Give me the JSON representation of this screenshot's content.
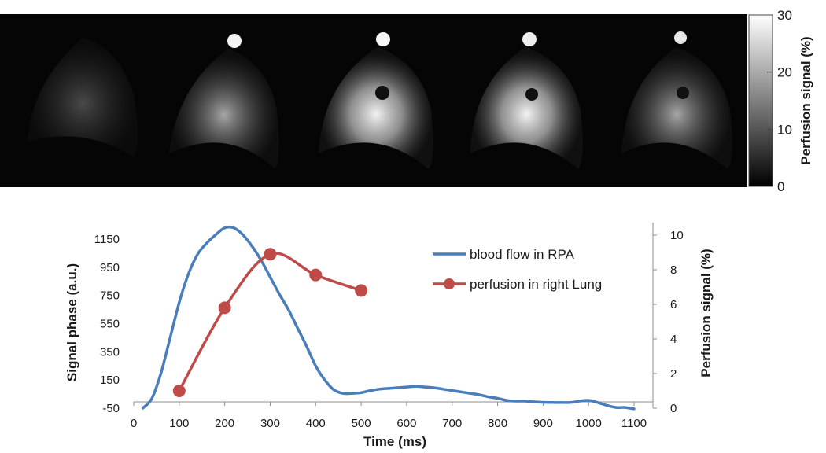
{
  "image_strip": {
    "panel_count": 5,
    "colorbar": {
      "label": "Perfusion signal (%)",
      "ticks": [
        "0",
        "10",
        "20",
        "30"
      ],
      "range": [
        0,
        30
      ],
      "gradient": [
        "#000000",
        "#ffffff"
      ]
    }
  },
  "chart_data": {
    "type": "line",
    "title": "",
    "xlabel": "Time (ms)",
    "ylabel": "Signal phase (a.u.)",
    "y2label": "Perfusion signal (%)",
    "xlim": [
      0,
      1150
    ],
    "ylim": [
      -50,
      1300
    ],
    "y2lim": [
      0,
      11
    ],
    "x_ticks": [
      "0",
      "100",
      "200",
      "300",
      "400",
      "500",
      "600",
      "700",
      "800",
      "900",
      "1000",
      "1100"
    ],
    "y_ticks": [
      "-50",
      "150",
      "350",
      "550",
      "750",
      "950",
      "1150"
    ],
    "y2_ticks": [
      "0",
      "2",
      "4",
      "6",
      "8",
      "10"
    ],
    "legend_position": "top-right",
    "series": [
      {
        "name": "blood flow in RPA",
        "axis": "left",
        "color": "#4a7ebb",
        "marker": "none",
        "x": [
          20,
          40,
          60,
          80,
          100,
          120,
          140,
          160,
          180,
          200,
          220,
          240,
          260,
          280,
          300,
          320,
          340,
          360,
          380,
          400,
          420,
          440,
          460,
          480,
          500,
          520,
          540,
          560,
          580,
          600,
          620,
          640,
          660,
          680,
          700,
          720,
          740,
          760,
          780,
          800,
          820,
          840,
          860,
          880,
          900,
          920,
          940,
          960,
          980,
          1000,
          1020,
          1040,
          1060,
          1080,
          1100
        ],
        "values": [
          -50,
          20,
          200,
          450,
          700,
          900,
          1040,
          1120,
          1180,
          1230,
          1230,
          1180,
          1100,
          1000,
          880,
          760,
          650,
          520,
          390,
          250,
          150,
          80,
          55,
          55,
          60,
          75,
          85,
          90,
          95,
          100,
          105,
          100,
          95,
          85,
          75,
          65,
          55,
          45,
          30,
          20,
          5,
          0,
          0,
          -5,
          -8,
          -10,
          -10,
          -10,
          0,
          5,
          -10,
          -30,
          -45,
          -45,
          -55
        ]
      },
      {
        "name": "perfusion in right Lung",
        "axis": "right",
        "color": "#be4b48",
        "marker": "circle",
        "x": [
          100,
          200,
          300,
          400,
          500
        ],
        "values": [
          1.0,
          5.8,
          8.9,
          7.7,
          6.8
        ]
      }
    ]
  }
}
